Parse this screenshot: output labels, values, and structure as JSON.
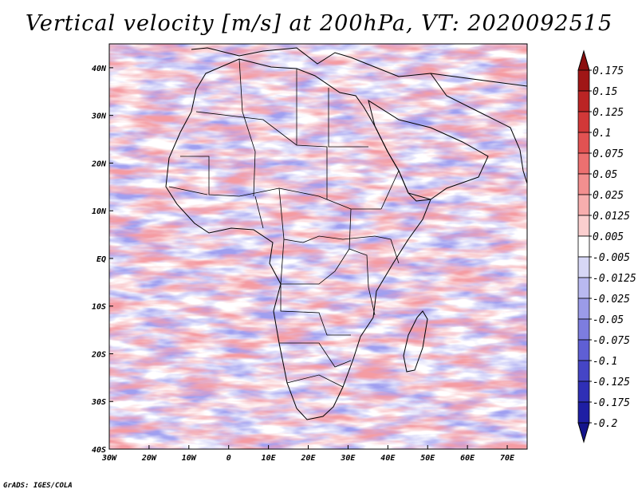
{
  "title": "Vertical velocity [m/s] at 200hPa, VT: 2020092515",
  "credit": "GrADS: IGES/COLA",
  "map": {
    "lon_range": [
      -30,
      75
    ],
    "lat_range": [
      -40,
      45
    ],
    "x_ticks": [
      {
        "lon": -30,
        "label": "30W"
      },
      {
        "lon": -20,
        "label": "20W"
      },
      {
        "lon": -10,
        "label": "10W"
      },
      {
        "lon": 0,
        "label": "0"
      },
      {
        "lon": 10,
        "label": "10E"
      },
      {
        "lon": 20,
        "label": "20E"
      },
      {
        "lon": 30,
        "label": "30E"
      },
      {
        "lon": 40,
        "label": "40E"
      },
      {
        "lon": 50,
        "label": "50E"
      },
      {
        "lon": 60,
        "label": "60E"
      },
      {
        "lon": 70,
        "label": "70E"
      }
    ],
    "y_ticks": [
      {
        "lat": 40,
        "label": "40N"
      },
      {
        "lat": 30,
        "label": "30N"
      },
      {
        "lat": 20,
        "label": "20N"
      },
      {
        "lat": 10,
        "label": "10N"
      },
      {
        "lat": 0,
        "label": "EQ"
      },
      {
        "lat": -10,
        "label": "10S"
      },
      {
        "lat": -20,
        "label": "20S"
      },
      {
        "lat": -30,
        "label": "30S"
      },
      {
        "lat": -40,
        "label": "40S"
      }
    ]
  },
  "colorbar": {
    "labels": [
      "0.175",
      "0.15",
      "0.125",
      "0.1",
      "0.075",
      "0.05",
      "0.025",
      "0.0125",
      "0.005",
      "-0.005",
      "-0.0125",
      "-0.025",
      "-0.05",
      "-0.075",
      "-0.1",
      "-0.125",
      "-0.175",
      "-0.2"
    ],
    "colors": [
      "#a01616",
      "#bb2424",
      "#d13838",
      "#e25252",
      "#ec7070",
      "#f28f8f",
      "#f7aeae",
      "#fbcfcf",
      "#ffffff",
      "#d7d7f6",
      "#b9b9f0",
      "#9b9be8",
      "#7d7ddf",
      "#5f5fd4",
      "#4545c6",
      "#2f2fb6",
      "#1e1ea4"
    ],
    "top_cap_color": "#8b0f0f",
    "bottom_cap_color": "#14148c"
  },
  "colors": {
    "land_outline": "#000000",
    "field_red": "#e8585c",
    "field_blue": "#5a5ade",
    "field_bg": "#ffffff"
  }
}
